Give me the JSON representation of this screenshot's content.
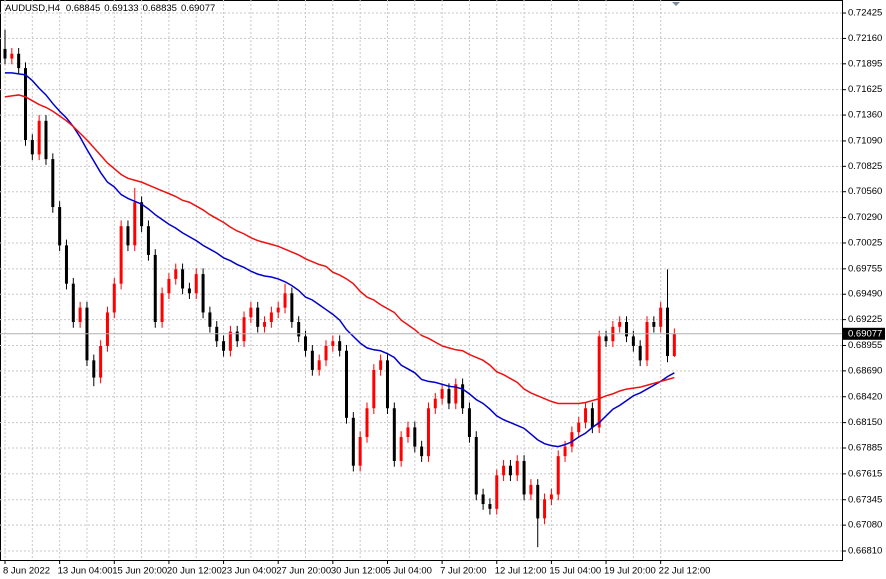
{
  "chart_data": {
    "type": "candlestick",
    "symbol": "AUDUSD,H4",
    "categories": [
      "8 Jun 2022",
      null,
      null,
      null,
      null,
      null,
      null,
      null,
      "13 Jun 04:00",
      null,
      null,
      null,
      null,
      null,
      null,
      null,
      "15 Jun 20:00",
      null,
      null,
      null,
      null,
      null,
      null,
      null,
      "20 Jun 12:00",
      null,
      null,
      null,
      null,
      null,
      null,
      null,
      "23 Jun 04:00",
      null,
      null,
      null,
      null,
      null,
      null,
      null,
      "27 Jun 20:00",
      null,
      null,
      null,
      null,
      null,
      null,
      null,
      "30 Jun 12:00",
      null,
      null,
      null,
      null,
      null,
      null,
      null,
      "5 Jul 04:00",
      null,
      null,
      null,
      null,
      null,
      null,
      null,
      "7 Jul 20:00",
      null,
      null,
      null,
      null,
      null,
      null,
      null,
      "12 Jul 12:00",
      null,
      null,
      null,
      null,
      null,
      null,
      null,
      "15 Jul 04:00",
      null,
      null,
      null,
      null,
      null,
      null,
      null,
      "19 Jul 20:00",
      null,
      null,
      null,
      null,
      null,
      null,
      null,
      "22 Jul 12:00",
      null,
      null
    ],
    "open": [
      0.7205,
      0.7195,
      0.72,
      0.7185,
      0.711,
      0.7095,
      0.713,
      0.709,
      0.704,
      0.7,
      0.696,
      0.692,
      0.6935,
      0.688,
      0.6862,
      0.6895,
      0.693,
      0.696,
      0.702,
      0.7,
      0.7045,
      0.702,
      0.699,
      0.692,
      0.695,
      0.6965,
      0.6975,
      0.6955,
      0.695,
      0.697,
      0.693,
      0.6915,
      0.69,
      0.689,
      0.691,
      0.69,
      0.6925,
      0.6935,
      0.6915,
      0.692,
      0.693,
      0.6935,
      0.695,
      0.692,
      0.6905,
      0.689,
      0.687,
      0.688,
      0.6895,
      0.69,
      0.689,
      0.682,
      0.677,
      0.68,
      0.683,
      0.687,
      0.688,
      0.683,
      0.6775,
      0.68,
      0.681,
      0.679,
      0.678,
      0.683,
      0.684,
      0.685,
      0.6835,
      0.6855,
      0.683,
      0.68,
      0.674,
      0.673,
      0.6725,
      0.676,
      0.677,
      0.676,
      0.6775,
      0.674,
      0.675,
      0.6715,
      0.6735,
      0.674,
      0.678,
      0.679,
      0.6805,
      0.6815,
      0.683,
      0.681,
      0.6905,
      0.69,
      0.6915,
      0.692,
      0.6905,
      0.6895,
      0.688,
      0.692,
      0.6915,
      0.6935,
      0.68845
    ],
    "high": [
      0.7225,
      0.7206,
      0.7206,
      0.7191,
      0.7116,
      0.7136,
      0.7136,
      0.7096,
      0.7046,
      0.7006,
      0.6966,
      0.6941,
      0.6941,
      0.6886,
      0.6901,
      0.6936,
      0.6966,
      0.7026,
      0.7026,
      0.706,
      0.7051,
      0.7026,
      0.6996,
      0.6956,
      0.6971,
      0.6981,
      0.6981,
      0.6961,
      0.6976,
      0.6976,
      0.6936,
      0.6921,
      0.6906,
      0.6916,
      0.6916,
      0.6931,
      0.6941,
      0.6941,
      0.6926,
      0.6936,
      0.6941,
      0.696,
      0.6956,
      0.6926,
      0.6911,
      0.6896,
      0.6886,
      0.6901,
      0.6906,
      0.6906,
      0.6896,
      0.6826,
      0.6806,
      0.6836,
      0.6876,
      0.6886,
      0.6886,
      0.6836,
      0.6806,
      0.6816,
      0.6816,
      0.6796,
      0.6836,
      0.6846,
      0.6856,
      0.6856,
      0.6861,
      0.6861,
      0.6836,
      0.6806,
      0.6746,
      0.6736,
      0.6766,
      0.6776,
      0.6776,
      0.6781,
      0.6781,
      0.6756,
      0.6756,
      0.6741,
      0.6746,
      0.6786,
      0.6796,
      0.6811,
      0.6821,
      0.6836,
      0.6836,
      0.6911,
      0.6911,
      0.6921,
      0.6926,
      0.6926,
      0.6911,
      0.6901,
      0.6926,
      0.6926,
      0.6941,
      0.6975,
      0.69133
    ],
    "low": [
      0.7189,
      0.7189,
      0.7179,
      0.7104,
      0.7089,
      0.7089,
      0.7084,
      0.7034,
      0.6994,
      0.6954,
      0.6914,
      0.6914,
      0.6874,
      0.6853,
      0.6856,
      0.6889,
      0.6924,
      0.6954,
      0.6994,
      0.6994,
      0.7014,
      0.6984,
      0.6914,
      0.6914,
      0.6944,
      0.6959,
      0.6949,
      0.6944,
      0.6944,
      0.6924,
      0.6909,
      0.6894,
      0.6884,
      0.6884,
      0.6894,
      0.6894,
      0.6919,
      0.6909,
      0.6909,
      0.6914,
      0.6924,
      0.6929,
      0.6914,
      0.6899,
      0.6884,
      0.6864,
      0.6864,
      0.6874,
      0.6889,
      0.6884,
      0.6814,
      0.6764,
      0.6764,
      0.6794,
      0.6824,
      0.6864,
      0.6824,
      0.6769,
      0.6769,
      0.6794,
      0.6784,
      0.6774,
      0.6774,
      0.6824,
      0.6834,
      0.6829,
      0.6829,
      0.6824,
      0.6794,
      0.6734,
      0.6724,
      0.6719,
      0.6719,
      0.6754,
      0.6754,
      0.6754,
      0.6734,
      0.6734,
      0.6685,
      0.6709,
      0.6729,
      0.6734,
      0.6774,
      0.6784,
      0.6799,
      0.6809,
      0.6804,
      0.6804,
      0.6894,
      0.6894,
      0.6909,
      0.6899,
      0.6889,
      0.6874,
      0.6874,
      0.6909,
      0.6909,
      0.6878,
      0.68835
    ],
    "close": [
      0.7195,
      0.72,
      0.7185,
      0.711,
      0.7095,
      0.713,
      0.709,
      0.704,
      0.7,
      0.696,
      0.692,
      0.6935,
      0.688,
      0.6862,
      0.6895,
      0.693,
      0.696,
      0.702,
      0.7,
      0.7045,
      0.702,
      0.699,
      0.692,
      0.695,
      0.6965,
      0.6975,
      0.6955,
      0.695,
      0.697,
      0.693,
      0.6915,
      0.69,
      0.689,
      0.691,
      0.69,
      0.6925,
      0.6935,
      0.6915,
      0.692,
      0.693,
      0.6935,
      0.695,
      0.692,
      0.6905,
      0.689,
      0.687,
      0.688,
      0.6895,
      0.69,
      0.689,
      0.682,
      0.677,
      0.68,
      0.683,
      0.687,
      0.688,
      0.683,
      0.6775,
      0.68,
      0.681,
      0.679,
      0.678,
      0.683,
      0.684,
      0.685,
      0.6835,
      0.6855,
      0.683,
      0.68,
      0.674,
      0.673,
      0.6725,
      0.676,
      0.677,
      0.676,
      0.6775,
      0.674,
      0.675,
      0.6715,
      0.6735,
      0.674,
      0.678,
      0.679,
      0.6805,
      0.6815,
      0.683,
      0.681,
      0.6905,
      0.69,
      0.6915,
      0.692,
      0.6905,
      0.6895,
      0.688,
      0.692,
      0.6915,
      0.6935,
      0.68845,
      0.69077
    ],
    "up_color": "#ff0000",
    "down_color": "#000000",
    "ma_lines": [
      {
        "color": "#0000cc",
        "values": [
          0.718,
          0.718,
          0.7179,
          0.7178,
          0.7172,
          0.7164,
          0.7157,
          0.7148,
          0.714,
          0.7133,
          0.7124,
          0.7113,
          0.71,
          0.7088,
          0.7076,
          0.7066,
          0.7061,
          0.7053,
          0.7049,
          0.7046,
          0.7043,
          0.7038,
          0.7032,
          0.7027,
          0.7022,
          0.7018,
          0.7013,
          0.7009,
          0.7005,
          0.7,
          0.6996,
          0.6992,
          0.6987,
          0.6984,
          0.698,
          0.6977,
          0.6973,
          0.697,
          0.6968,
          0.6967,
          0.6965,
          0.6962,
          0.6958,
          0.6953,
          0.6946,
          0.6943,
          0.6938,
          0.6933,
          0.6928,
          0.6922,
          0.6912,
          0.6905,
          0.6898,
          0.6893,
          0.6891,
          0.689,
          0.6887,
          0.6883,
          0.6875,
          0.6871,
          0.6867,
          0.686,
          0.6858,
          0.6857,
          0.6855,
          0.6853,
          0.6852,
          0.685,
          0.6845,
          0.6839,
          0.6835,
          0.6829,
          0.6822,
          0.6818,
          0.6815,
          0.6812,
          0.6809,
          0.6803,
          0.6797,
          0.6793,
          0.6791,
          0.679,
          0.6792,
          0.6795,
          0.68,
          0.6804,
          0.681,
          0.6815,
          0.6822,
          0.6829,
          0.6833,
          0.6838,
          0.6843,
          0.6846,
          0.685,
          0.6854,
          0.6858,
          0.6863,
          0.6867
        ]
      },
      {
        "color": "#ee1111",
        "values": [
          0.7155,
          0.7156,
          0.7157,
          0.7155,
          0.7151,
          0.7147,
          0.7144,
          0.714,
          0.7135,
          0.713,
          0.7124,
          0.7117,
          0.711,
          0.7102,
          0.7094,
          0.7086,
          0.708,
          0.7074,
          0.707,
          0.7068,
          0.7066,
          0.7063,
          0.706,
          0.7057,
          0.7054,
          0.7051,
          0.7047,
          0.7045,
          0.7041,
          0.7037,
          0.7032,
          0.7028,
          0.7024,
          0.7019,
          0.7015,
          0.7012,
          0.7008,
          0.7005,
          0.7003,
          0.7001,
          0.6999,
          0.6996,
          0.6993,
          0.699,
          0.6986,
          0.6983,
          0.698,
          0.6978,
          0.6972,
          0.6969,
          0.6965,
          0.696,
          0.6952,
          0.6946,
          0.6943,
          0.6938,
          0.6934,
          0.693,
          0.6922,
          0.6917,
          0.6912,
          0.6906,
          0.6903,
          0.6899,
          0.6895,
          0.6893,
          0.6891,
          0.689,
          0.6886,
          0.6883,
          0.688,
          0.6875,
          0.6868,
          0.6865,
          0.6861,
          0.6857,
          0.685,
          0.6846,
          0.6843,
          0.684,
          0.6837,
          0.6835,
          0.6835,
          0.6835,
          0.6835,
          0.6836,
          0.6838,
          0.684,
          0.6843,
          0.6845,
          0.6848,
          0.685,
          0.6851,
          0.6852,
          0.6854,
          0.6856,
          0.6858,
          0.686,
          0.6862
        ]
      }
    ],
    "ylim": [
      0.66716,
      0.72561
    ],
    "yticks": [
      0.72425,
      {
        "value": 0.7216,
        "label": "0.72160"
      },
      0.71895,
      0.71625,
      {
        "value": 0.7136,
        "label": "0.71360"
      },
      {
        "value": 0.7109,
        "label": "0.71090"
      },
      0.70825,
      {
        "value": 0.7056,
        "label": "0.70560"
      },
      {
        "value": 0.7029,
        "label": "0.70290"
      },
      0.70025,
      0.69755,
      {
        "value": 0.6949,
        "label": "0.69490"
      },
      0.69225,
      0.68955,
      {
        "value": 0.6869,
        "label": "0.68690"
      },
      {
        "value": 0.6842,
        "label": "0.68420"
      },
      {
        "value": 0.6815,
        "label": "0.68150"
      },
      0.67885,
      0.67615,
      0.67345,
      {
        "value": 0.6708,
        "label": "0.67080"
      },
      {
        "value": 0.6681,
        "label": "0.66810"
      }
    ],
    "grid": true
  }
}
